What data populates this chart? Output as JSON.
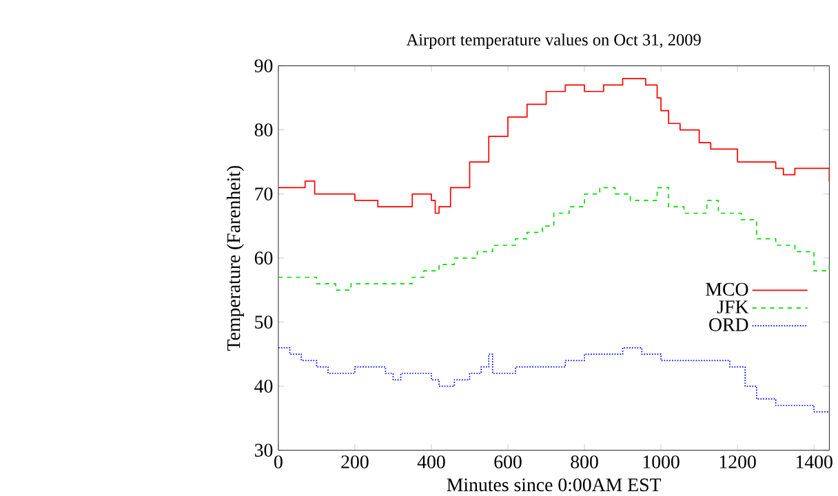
{
  "chart_data": {
    "type": "step",
    "title": "Airport temperature values on Oct 31, 2009",
    "xlabel": "Minutes since 0:00AM EST",
    "ylabel": "Temperature (Farenheit)",
    "xlim": [
      0,
      1440
    ],
    "ylim": [
      30,
      90
    ],
    "xticks": [
      0,
      200,
      400,
      600,
      800,
      1000,
      1200,
      1400
    ],
    "yticks": [
      30,
      40,
      50,
      60,
      70,
      80,
      90
    ],
    "grid": false,
    "legend": "right",
    "marker": "none",
    "series": [
      {
        "name": "MCO",
        "color": "#ff0000",
        "line_style": "solid",
        "x": [
          0,
          70,
          95,
          200,
          260,
          350,
          400,
          410,
          420,
          450,
          500,
          550,
          600,
          650,
          700,
          750,
          800,
          850,
          900,
          950,
          960,
          990,
          1000,
          1020,
          1050,
          1100,
          1130,
          1200,
          1300,
          1320,
          1350,
          1430,
          1440
        ],
        "values": [
          71,
          72,
          70,
          69,
          68,
          70,
          69,
          67,
          68,
          71,
          75,
          79,
          82,
          84,
          86,
          87,
          86,
          87,
          88,
          88,
          87,
          85,
          83,
          81,
          80,
          78,
          77,
          75,
          74,
          73,
          74,
          74,
          72
        ]
      },
      {
        "name": "JFK",
        "color": "#00dd00",
        "line_style": "dashed",
        "x": [
          0,
          100,
          150,
          190,
          300,
          350,
          380,
          420,
          460,
          520,
          560,
          620,
          650,
          690,
          720,
          760,
          800,
          840,
          880,
          920,
          960,
          990,
          1020,
          1060,
          1100,
          1120,
          1150,
          1210,
          1250,
          1300,
          1350,
          1400,
          1440
        ],
        "values": [
          57,
          56,
          55,
          56,
          56,
          57,
          58,
          59,
          60,
          61,
          62,
          63,
          64,
          65,
          67,
          68,
          70,
          71,
          70,
          69,
          69,
          71,
          68,
          67,
          67,
          69,
          67,
          66,
          63,
          62,
          61,
          58,
          59
        ]
      },
      {
        "name": "ORD",
        "color": "#0000ff",
        "line_style": "dotted",
        "x": [
          0,
          30,
          60,
          100,
          130,
          200,
          260,
          280,
          300,
          320,
          400,
          420,
          460,
          500,
          530,
          550,
          560,
          620,
          700,
          750,
          800,
          900,
          950,
          1000,
          1150,
          1180,
          1220,
          1250,
          1300,
          1350,
          1400,
          1440
        ],
        "values": [
          46,
          45,
          44,
          43,
          42,
          43,
          43,
          42,
          41,
          42,
          41,
          40,
          41,
          42,
          43,
          45,
          42,
          43,
          43,
          44,
          45,
          46,
          45,
          44,
          44,
          43,
          40,
          38,
          37,
          37,
          36,
          36
        ]
      }
    ]
  }
}
